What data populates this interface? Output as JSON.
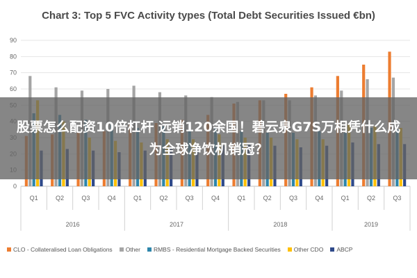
{
  "chart_data": {
    "type": "bar",
    "title": "Chart 3: Top 5 FVC Activity types (Total Debt Securities Issued €bn)",
    "xlabel": "",
    "ylabel": "",
    "ylim": [
      0,
      90
    ],
    "yticks": [
      0,
      10,
      20,
      30,
      40,
      50,
      60,
      70,
      80,
      90
    ],
    "categories": [
      "Q1",
      "Q2",
      "Q3",
      "Q4",
      "Q1",
      "Q2",
      "Q3",
      "Q4",
      "Q1",
      "Q2",
      "Q3",
      "Q4",
      "Q1",
      "Q2",
      "Q3"
    ],
    "year_groups": [
      {
        "label": "2016",
        "count": 4
      },
      {
        "label": "2017",
        "count": 4
      },
      {
        "label": "2018",
        "count": 4
      },
      {
        "label": "2019",
        "count": 3
      }
    ],
    "grid": true,
    "legend_position": "bottom",
    "series": [
      {
        "name": "CLO - Collateralised Loan Obligations",
        "color": "#ED7D31",
        "values": [
          31,
          32,
          33,
          34,
          38,
          39,
          41,
          44,
          51,
          53,
          57,
          61,
          68,
          75,
          83
        ]
      },
      {
        "name": "Other",
        "color": "#A5A5A5",
        "values": [
          68,
          61,
          59,
          60,
          62,
          58,
          56,
          55,
          52,
          53,
          53,
          56,
          59,
          66,
          67
        ]
      },
      {
        "name": "RMBS - Residential Mortgage Backed Securities",
        "color": "#2E86AB",
        "values": [
          45,
          44,
          41,
          38,
          36,
          37,
          35,
          36,
          34,
          33,
          33,
          34,
          33,
          36,
          35
        ]
      },
      {
        "name": "Other CDO",
        "color": "#FFC000",
        "values": [
          53,
          40,
          30,
          28,
          27,
          29,
          29,
          32,
          30,
          30,
          29,
          29,
          38,
          37,
          36
        ]
      },
      {
        "name": "ABCP",
        "color": "#2F4A8A",
        "values": [
          22,
          23,
          22,
          21,
          22,
          23,
          24,
          25,
          26,
          25,
          24,
          25,
          27,
          26,
          26
        ]
      }
    ]
  },
  "overlay": {
    "banner_text": "股票怎么配资10倍杠杆 远销120余国！碧云泉G7S万相凭什么成为全球净饮机销冠？"
  }
}
